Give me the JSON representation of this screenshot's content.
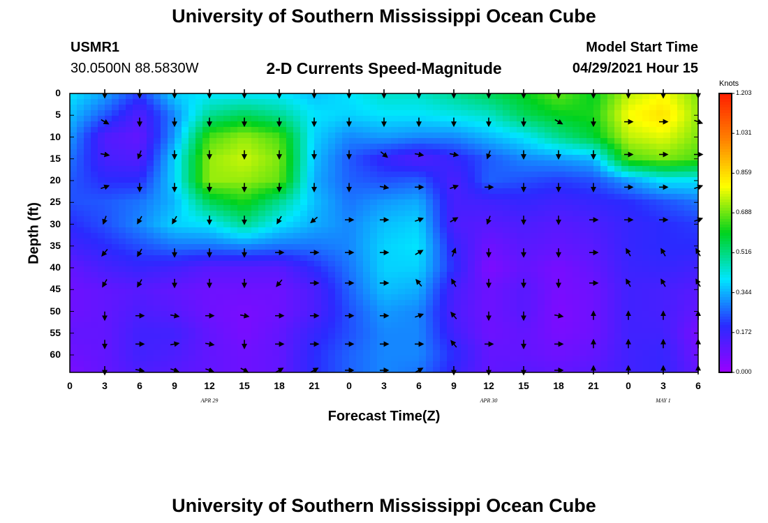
{
  "page": {
    "title_top": "University of Southern Mississippi Ocean Cube",
    "title_bottom": "University of Southern Mississippi Ocean Cube",
    "station_id": "USMR1",
    "location": "30.0500N  88.5830W",
    "plot_title": "2-D Currents Speed-Magnitude",
    "model_start_label": "Model Start Time",
    "model_start_value": "04/29/2021 Hour 15"
  },
  "chart_data": {
    "type": "heatmap",
    "title": "2-D Currents Speed-Magnitude",
    "xlabel": "Forecast Time(Z)",
    "ylabel": "Depth (ft)",
    "x_hours": [
      0,
      3,
      6,
      9,
      12,
      15,
      18,
      21,
      24,
      27,
      30,
      33,
      36,
      39,
      42,
      45,
      48,
      51,
      54
    ],
    "xtick_labels": [
      "0",
      "3",
      "6",
      "9",
      "12",
      "15",
      "18",
      "21",
      "0",
      "3",
      "6",
      "9",
      "12",
      "15",
      "18",
      "21",
      "0",
      "3",
      "6"
    ],
    "date_labels": [
      {
        "label": "APR 29",
        "hour": 12
      },
      {
        "label": "APR 30",
        "hour": 36
      },
      {
        "label": "MAY 1",
        "hour": 51
      }
    ],
    "ylim": [
      0,
      64
    ],
    "y_ticks": [
      0,
      5,
      10,
      15,
      20,
      25,
      30,
      35,
      40,
      45,
      50,
      55,
      60
    ],
    "ytick_labels": [
      "0",
      "5",
      "10",
      "15",
      "20",
      "25",
      "30",
      "35",
      "40",
      "45",
      "50",
      "55",
      "60"
    ],
    "colorbar": {
      "units": "Knots",
      "min": 0.0,
      "max": 1.203,
      "tick_values": [
        0.0,
        0.172,
        0.344,
        0.516,
        0.688,
        0.859,
        1.031,
        1.203
      ],
      "tick_labels": [
        "0.000",
        "0.172",
        "0.344",
        "0.516",
        "0.688",
        "0.859",
        "1.031",
        "1.203"
      ],
      "colors": [
        "#9a00ff",
        "#2a2aff",
        "#00e6ff",
        "#00d21e",
        "#ffff00",
        "#ff8200",
        "#ff1e00"
      ]
    },
    "arrow_columns_hours": [
      3,
      6,
      9,
      12,
      15,
      18,
      21,
      24,
      27,
      30,
      33,
      36,
      39,
      42,
      45,
      48,
      51,
      54
    ],
    "arrow_rows_ft": [
      0,
      6.5,
      14,
      21.5,
      29,
      36.5,
      43.5,
      51,
      57.5,
      64
    ],
    "speed_grid_depths_ft": [
      0,
      5,
      10,
      15,
      20,
      25,
      30,
      35,
      40,
      45,
      50,
      55,
      60,
      64
    ],
    "speed_grid_hours": [
      0,
      3,
      6,
      9,
      12,
      15,
      18,
      21,
      24,
      27,
      30,
      33,
      36,
      39,
      42,
      45,
      48,
      51,
      54
    ],
    "speed_knots": [
      [
        0.4,
        0.33,
        0.22,
        0.38,
        0.4,
        0.4,
        0.4,
        0.36,
        0.4,
        0.45,
        0.45,
        0.5,
        0.55,
        0.6,
        0.68,
        0.6,
        0.75,
        0.8,
        0.7
      ],
      [
        0.36,
        0.25,
        0.13,
        0.3,
        0.5,
        0.55,
        0.5,
        0.4,
        0.38,
        0.4,
        0.4,
        0.42,
        0.45,
        0.55,
        0.6,
        0.62,
        0.8,
        0.85,
        0.72
      ],
      [
        0.32,
        0.13,
        0.1,
        0.32,
        0.66,
        0.72,
        0.66,
        0.38,
        0.3,
        0.32,
        0.3,
        0.3,
        0.35,
        0.4,
        0.5,
        0.58,
        0.75,
        0.78,
        0.7
      ],
      [
        0.28,
        0.15,
        0.13,
        0.38,
        0.72,
        0.76,
        0.7,
        0.36,
        0.25,
        0.18,
        0.13,
        0.18,
        0.25,
        0.3,
        0.32,
        0.35,
        0.66,
        0.7,
        0.66
      ],
      [
        0.25,
        0.2,
        0.2,
        0.38,
        0.72,
        0.72,
        0.68,
        0.34,
        0.26,
        0.24,
        0.26,
        0.14,
        0.26,
        0.24,
        0.22,
        0.24,
        0.32,
        0.4,
        0.4
      ],
      [
        0.24,
        0.25,
        0.28,
        0.35,
        0.55,
        0.62,
        0.5,
        0.36,
        0.28,
        0.32,
        0.34,
        0.15,
        0.16,
        0.18,
        0.16,
        0.18,
        0.2,
        0.24,
        0.28
      ],
      [
        0.2,
        0.24,
        0.3,
        0.38,
        0.4,
        0.5,
        0.4,
        0.34,
        0.3,
        0.36,
        0.38,
        0.14,
        0.12,
        0.14,
        0.12,
        0.14,
        0.18,
        0.2,
        0.22
      ],
      [
        0.16,
        0.2,
        0.24,
        0.28,
        0.28,
        0.3,
        0.28,
        0.28,
        0.3,
        0.38,
        0.4,
        0.18,
        0.08,
        0.12,
        0.1,
        0.12,
        0.18,
        0.2,
        0.2
      ],
      [
        0.1,
        0.15,
        0.18,
        0.16,
        0.12,
        0.12,
        0.12,
        0.2,
        0.28,
        0.38,
        0.38,
        0.2,
        0.05,
        0.1,
        0.06,
        0.1,
        0.17,
        0.18,
        0.16
      ],
      [
        0.08,
        0.1,
        0.12,
        0.1,
        0.08,
        0.08,
        0.08,
        0.14,
        0.26,
        0.36,
        0.34,
        0.15,
        0.08,
        0.12,
        0.06,
        0.08,
        0.16,
        0.15,
        0.12
      ],
      [
        0.08,
        0.1,
        0.14,
        0.12,
        0.08,
        0.06,
        0.08,
        0.14,
        0.24,
        0.32,
        0.3,
        0.14,
        0.08,
        0.12,
        0.05,
        0.08,
        0.16,
        0.15,
        0.1
      ],
      [
        0.1,
        0.1,
        0.16,
        0.16,
        0.1,
        0.06,
        0.1,
        0.18,
        0.24,
        0.3,
        0.3,
        0.16,
        0.08,
        0.1,
        0.06,
        0.08,
        0.16,
        0.16,
        0.06
      ],
      [
        0.08,
        0.1,
        0.16,
        0.14,
        0.1,
        0.08,
        0.1,
        0.2,
        0.26,
        0.3,
        0.3,
        0.2,
        0.1,
        0.1,
        0.08,
        0.1,
        0.16,
        0.18,
        0.08
      ],
      [
        0.06,
        0.1,
        0.14,
        0.12,
        0.1,
        0.08,
        0.1,
        0.2,
        0.26,
        0.3,
        0.28,
        0.18,
        0.1,
        0.12,
        0.1,
        0.12,
        0.16,
        0.18,
        0.1
      ]
    ],
    "arrow_directions_deg": [
      [
        180,
        180,
        180,
        180,
        180,
        180,
        180,
        180,
        180,
        180,
        180,
        180,
        180,
        180,
        180,
        180,
        180,
        180
      ],
      [
        120,
        180,
        180,
        180,
        180,
        180,
        180,
        180,
        180,
        180,
        180,
        180,
        180,
        120,
        180,
        90,
        90,
        110
      ],
      [
        100,
        200,
        180,
        180,
        180,
        180,
        180,
        180,
        130,
        100,
        100,
        200,
        180,
        180,
        180,
        90,
        90,
        90
      ],
      [
        70,
        180,
        180,
        180,
        180,
        180,
        180,
        180,
        100,
        90,
        70,
        90,
        180,
        180,
        180,
        90,
        90,
        70
      ],
      [
        200,
        210,
        210,
        180,
        180,
        210,
        230,
        90,
        90,
        70,
        60,
        200,
        180,
        180,
        90,
        90,
        90,
        70
      ],
      [
        220,
        210,
        180,
        180,
        180,
        90,
        90,
        90,
        90,
        60,
        20,
        180,
        180,
        180,
        90,
        -30,
        -30,
        -30
      ],
      [
        210,
        210,
        180,
        180,
        180,
        220,
        90,
        90,
        90,
        -40,
        -30,
        180,
        180,
        180,
        90,
        -30,
        -30,
        -30
      ],
      [
        180,
        90,
        100,
        90,
        100,
        90,
        90,
        90,
        90,
        70,
        -40,
        180,
        180,
        100,
        0,
        0,
        0,
        0
      ],
      [
        180,
        90,
        80,
        100,
        180,
        90,
        90,
        90,
        90,
        90,
        -40,
        90,
        180,
        90,
        0,
        0,
        0,
        0
      ],
      [
        180,
        100,
        110,
        110,
        120,
        60,
        60,
        90,
        90,
        60,
        180,
        180,
        180,
        90,
        0,
        0,
        0,
        0
      ]
    ]
  }
}
